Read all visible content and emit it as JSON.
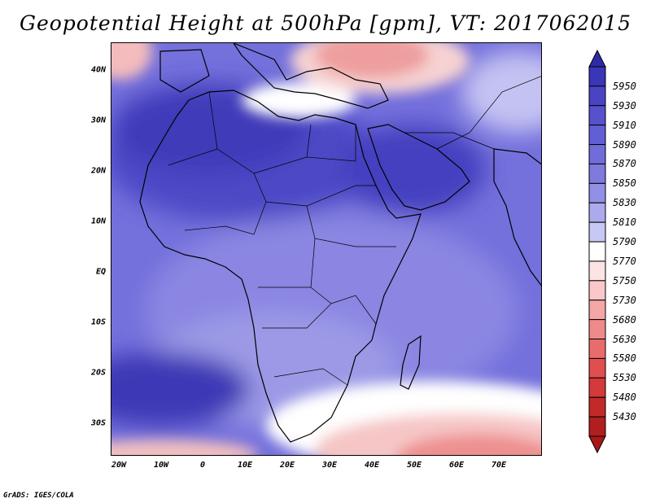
{
  "title": "Geopotential Height at 500hPa [gpm], VT: 2017062015",
  "footer": "GrADS: IGES/COLA",
  "map": {
    "variable": "Geopotential Height",
    "level": "500hPa",
    "units": "gpm",
    "valid_time": "2017062015",
    "lon_range": [
      -20,
      80
    ],
    "lat_range": [
      -37,
      45
    ],
    "lat_ticks": [
      "40N",
      "30N",
      "20N",
      "10N",
      "EQ",
      "10S",
      "20S",
      "30S"
    ],
    "lon_ticks": [
      "20W",
      "10W",
      "0",
      "10E",
      "20E",
      "30E",
      "40E",
      "50E",
      "60E",
      "70E"
    ],
    "features": [
      {
        "name": "subtropical high over Sahara",
        "level": "high"
      },
      {
        "name": "subtropical high over Arabia",
        "level": "high"
      },
      {
        "name": "high over South Atlantic",
        "level": "high"
      },
      {
        "name": "trough over eastern Mediterranean / Turkey",
        "level": "low"
      },
      {
        "name": "trough over Southern Ocean",
        "level": "low"
      }
    ]
  },
  "colorbar": {
    "levels": [
      "5950",
      "5930",
      "5910",
      "5890",
      "5870",
      "5850",
      "5830",
      "5810",
      "5790",
      "5770",
      "5750",
      "5730",
      "5680",
      "5630",
      "5580",
      "5530",
      "5480",
      "5430"
    ],
    "colors": [
      "#3a36b8",
      "#4a44c4",
      "#5652cc",
      "#625ed4",
      "#706cda",
      "#7e7ade",
      "#9290e4",
      "#acaaec",
      "#c8c8f4",
      "#ffffff",
      "#fde4e4",
      "#fac8c8",
      "#f5a6a6",
      "#ef8a8a",
      "#e86c6c",
      "#e04e4e",
      "#d43a3a",
      "#c22a2a",
      "#b01e1e"
    ],
    "top_arrow_color": "#302aa8",
    "bottom_arrow_color": "#a81818"
  }
}
